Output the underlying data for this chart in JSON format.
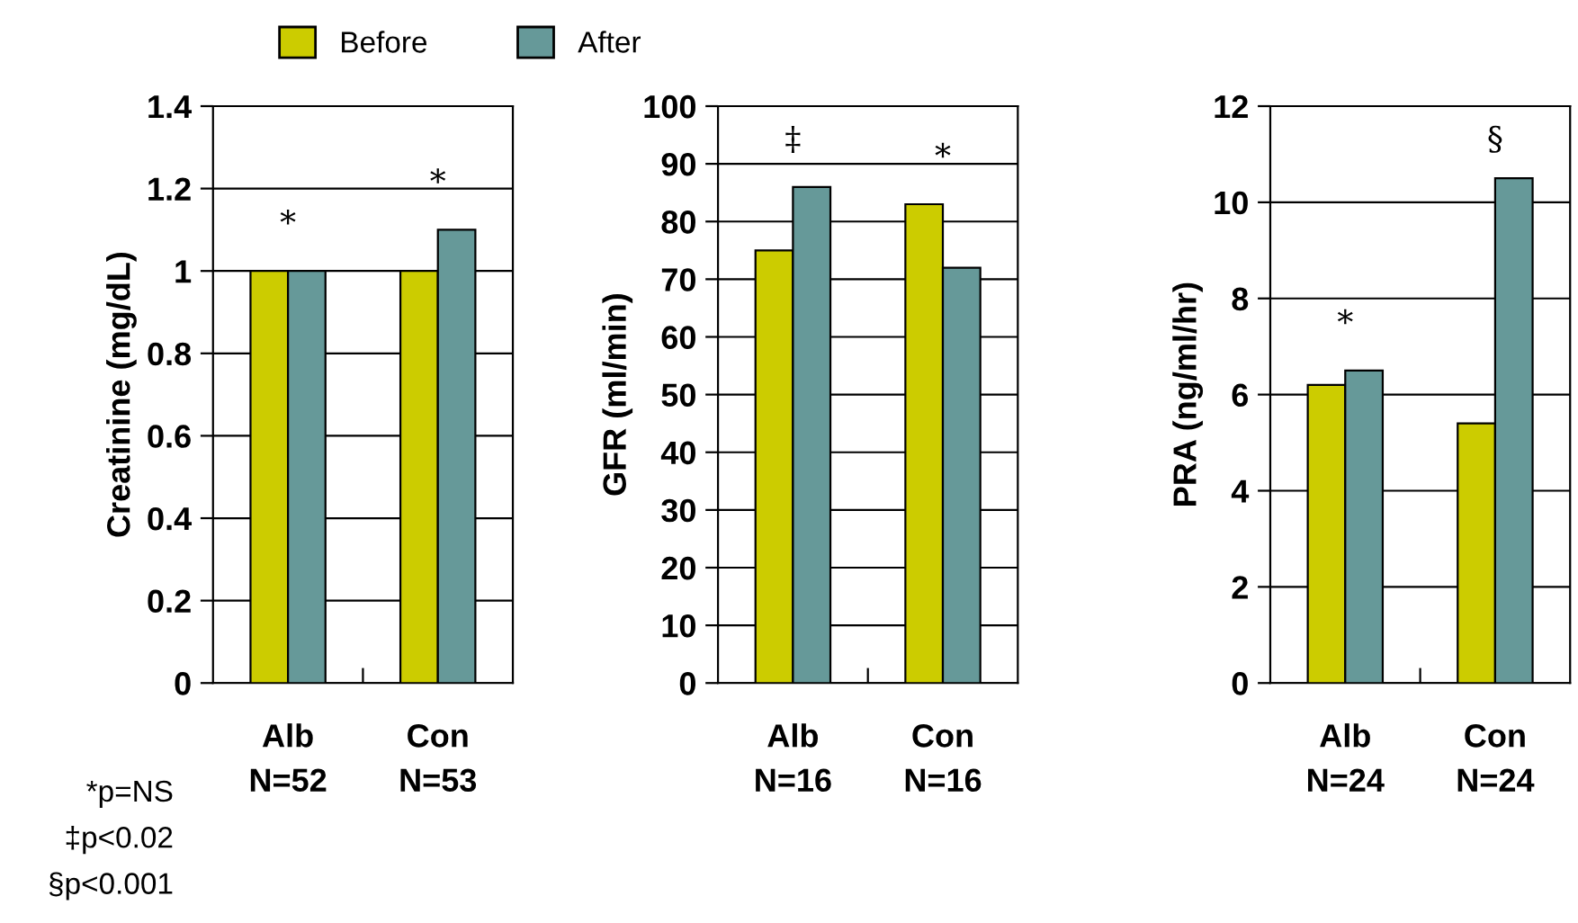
{
  "chart_data": [
    {
      "type": "bar",
      "ylabel": "Creatinine (mg/dL)",
      "categories": [
        "Alb\nN=52",
        "Con\nN=53"
      ],
      "series": [
        {
          "name": "Before",
          "color": "#cccc00",
          "values": [
            1.0,
            1.0
          ]
        },
        {
          "name": "After",
          "color": "#669999",
          "values": [
            1.0,
            1.1
          ]
        }
      ],
      "ylim": [
        0,
        1.4
      ],
      "yticks": [
        {
          "value": 0,
          "label": "0"
        },
        {
          "value": 0.2,
          "label": "0.2"
        },
        {
          "value": 0.4,
          "label": "0.4"
        },
        {
          "value": 0.6,
          "label": "0.6"
        },
        {
          "value": 0.8,
          "label": "0.8"
        },
        {
          "value": 1,
          "label": "1"
        },
        {
          "value": 1.2,
          "label": "1.2"
        },
        {
          "value": 1.4,
          "label": "1.4"
        }
      ],
      "grid": "y",
      "legend": "top",
      "annotations": [
        "*",
        "*",
        "*p=NS",
        "‡p<0.02",
        "§p<0.001"
      ]
    },
    {
      "type": "bar",
      "ylabel": "GFR (ml/min)",
      "categories": [
        "Alb\nN=16",
        "Con\nN=16"
      ],
      "series": [
        {
          "color": "#cccc00",
          "values": [
            75,
            83
          ]
        },
        {
          "color": "#669999",
          "values": [
            86,
            72
          ]
        }
      ],
      "ylim": [
        0,
        100
      ],
      "yticks": [
        0,
        10,
        20,
        30,
        40,
        50,
        60,
        70,
        80,
        90,
        100
      ],
      "grid": "y",
      "annotations": [
        "‡",
        "*"
      ]
    },
    {
      "type": "bar",
      "ylabel": "PRA (ng/ml/hr)",
      "categories": [
        "Alb\nN=24",
        "Con\nN=24"
      ],
      "series": [
        {
          "color": "#cccc00",
          "values": [
            6.2,
            5.4
          ]
        },
        {
          "color": "#669999",
          "values": [
            6.5,
            10.5
          ]
        }
      ],
      "ylim": [
        0,
        12
      ],
      "yticks": [
        0,
        2,
        4,
        6,
        8,
        10,
        12
      ],
      "grid": "y",
      "annotations": [
        "*",
        "§"
      ]
    }
  ]
}
